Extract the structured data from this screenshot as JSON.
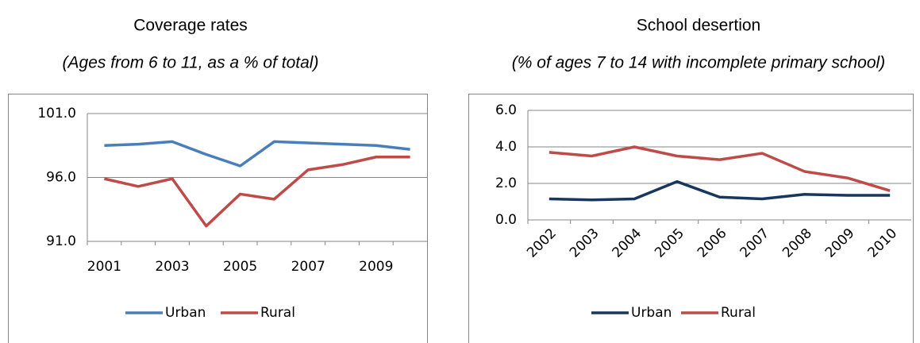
{
  "chart_data": [
    {
      "type": "line",
      "title": "Coverage rates",
      "subtitle": "(Ages from 6 to 11, as a % of total)",
      "categories": [
        2001,
        null,
        2003,
        null,
        2005,
        null,
        2007,
        null,
        2009,
        null
      ],
      "series": [
        {
          "name": "Urban",
          "color": "#4a7ebb",
          "values": [
            98.5,
            98.6,
            98.8,
            97.8,
            96.9,
            98.8,
            98.7,
            98.6,
            98.5,
            98.2
          ]
        },
        {
          "name": "Rural",
          "color": "#be4b48",
          "values": [
            95.9,
            95.3,
            95.9,
            92.2,
            94.7,
            94.3,
            96.6,
            97.0,
            97.6,
            97.6
          ]
        }
      ],
      "ylim": [
        91,
        101
      ],
      "yticks": [
        {
          "value": 91,
          "label": "91.0"
        },
        {
          "value": 96,
          "label": "96.0"
        },
        {
          "value": 101,
          "label": "101.0"
        }
      ],
      "grid": true,
      "legend": "bottom"
    },
    {
      "type": "line",
      "title": "School desertion",
      "subtitle": "(% of ages 7 to 14 with incomplete primary school)",
      "categories": [
        2002,
        2003,
        2004,
        2005,
        2006,
        2007,
        2008,
        2009,
        2010
      ],
      "series": [
        {
          "name": "Urban",
          "color": "#17375e",
          "values": [
            1.15,
            1.1,
            1.15,
            2.1,
            1.25,
            1.15,
            1.4,
            1.35,
            1.35
          ]
        },
        {
          "name": "Rural",
          "color": "#be4b48",
          "values": [
            3.7,
            3.5,
            4.0,
            3.5,
            3.3,
            3.65,
            2.65,
            2.3,
            1.6
          ]
        }
      ],
      "ylim": [
        0,
        6
      ],
      "yticks": [
        {
          "value": 0,
          "label": "0.0"
        },
        {
          "value": 2,
          "label": "2.0"
        },
        {
          "value": 4,
          "label": "4.0"
        },
        {
          "value": 6,
          "label": "6.0"
        }
      ],
      "grid": true,
      "legend": "bottom"
    }
  ]
}
